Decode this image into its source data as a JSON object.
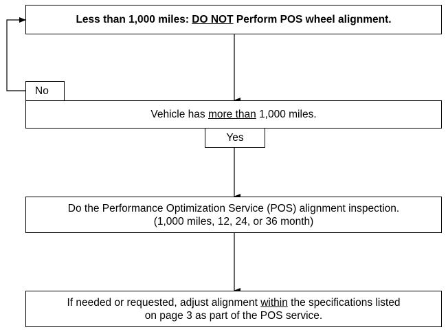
{
  "top_box": {
    "prefix": "Less than 1,000 miles: ",
    "emphasis": "DO NOT",
    "suffix": " Perform POS wheel alignment."
  },
  "no_label": "No",
  "vehicle_box": {
    "prefix": "Vehicle has ",
    "emphasis": "more than",
    "suffix": " 1,000 miles."
  },
  "yes_label": "Yes",
  "pos_box": {
    "line1": "Do the Performance Optimization Service (POS) alignment inspection.",
    "line2": "(1,000 miles, 12, 24, or 36 month)"
  },
  "adjust_box": {
    "line1_prefix": "If needed or requested, adjust alignment ",
    "line1_emphasis": "within",
    "line1_suffix": " the specifications listed",
    "line2": "on page 3 as part of the POS service."
  }
}
